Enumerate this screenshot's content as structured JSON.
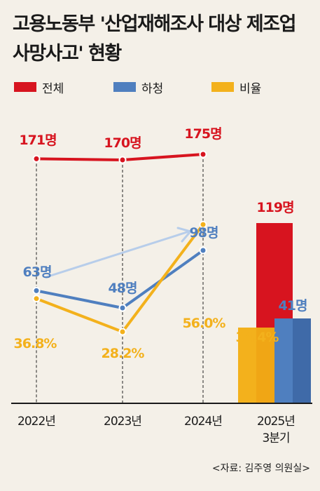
{
  "title": "고용노동부 '산업재해조사 대상 제조업 사망사고' 현황",
  "source": "<자료: 김주영 의원실>",
  "colors": {
    "total": "#d7141f",
    "subcontract": "#4f7fbf",
    "ratio": "#f3b11c",
    "arrow": "#b7cdea",
    "background": "#f4f0e8"
  },
  "chart_data": {
    "type": "line",
    "categories": [
      "2022년",
      "2023년",
      "2024년",
      "2025년 3분기"
    ],
    "series": [
      {
        "name": "전체",
        "values": [
          171,
          170,
          175,
          119
        ],
        "labels": [
          "171명",
          "170명",
          "175명",
          "119명"
        ]
      },
      {
        "name": "하청",
        "values": [
          63,
          48,
          98,
          41
        ],
        "labels": [
          "63명",
          "48명",
          "98명",
          "41명"
        ]
      },
      {
        "name": "비율",
        "values": [
          36.8,
          28.2,
          56.0,
          34.4
        ],
        "labels": [
          "36.8%",
          "28.2%",
          "56.0%",
          "34.4%"
        ]
      }
    ],
    "annotations": [
      "2022년 대비 2024년 하청 사망자 증가 화살표"
    ],
    "grid": false,
    "legend_position": "top-left"
  }
}
